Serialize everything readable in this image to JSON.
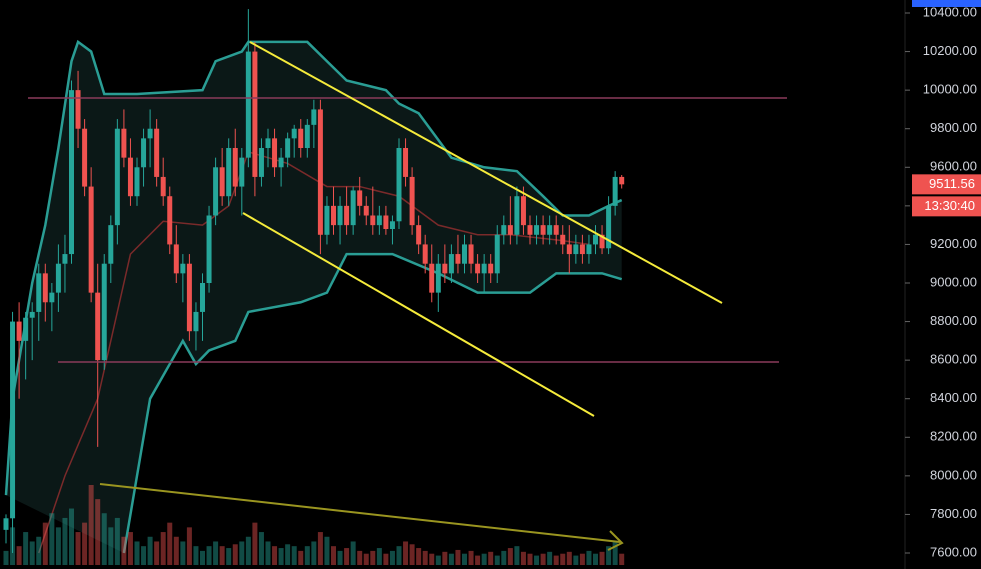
{
  "chart_data": {
    "type": "candlestick",
    "open": [
      7720,
      7780,
      8800,
      8700,
      8820,
      8850,
      9050,
      8900,
      8950,
      9100,
      9150,
      10000,
      9800,
      9500,
      8950,
      8600,
      9100,
      9300,
      9800,
      9650,
      9450,
      9600,
      9750,
      9800,
      9550,
      9450,
      9200,
      9050,
      9100,
      8750,
      8850,
      9000,
      9350,
      9600,
      9450,
      9700,
      9500,
      9650,
      10200,
      9550,
      9700,
      9750,
      9600,
      9650,
      9750,
      9800,
      9700,
      9820,
      9900,
      9250,
      9400,
      9300,
      9400,
      9300,
      9480,
      9400,
      9350,
      9300,
      9350,
      9280,
      9320,
      9700,
      9550,
      9300,
      9200,
      9100,
      8950,
      9100,
      9050,
      9150,
      9100,
      9200,
      9100,
      9050,
      9100,
      9050,
      9250,
      9300,
      9250,
      9450,
      9300,
      9250,
      9300,
      9250,
      9300,
      9250,
      9200,
      9150,
      9200,
      9150,
      9200,
      9250,
      9180,
      9400,
      9550
    ],
    "high": [
      7800,
      8850,
      8900,
      8850,
      8900,
      9100,
      9100,
      9000,
      9200,
      9250,
      10050,
      10100,
      9850,
      9600,
      9100,
      9150,
      9350,
      9850,
      9900,
      9750,
      9650,
      9800,
      9900,
      9850,
      9650,
      9500,
      9300,
      9150,
      9150,
      8900,
      9050,
      9400,
      9650,
      9700,
      9750,
      9800,
      9700,
      10420,
      10250,
      9750,
      9800,
      9800,
      9700,
      9780,
      9820,
      9850,
      9850,
      9950,
      9950,
      9450,
      9500,
      9450,
      9500,
      9500,
      9550,
      9450,
      9500,
      9400,
      9400,
      9350,
      9750,
      9750,
      9600,
      9350,
      9250,
      9200,
      9150,
      9200,
      9200,
      9250,
      9250,
      9250,
      9150,
      9150,
      9150,
      9300,
      9350,
      9450,
      9500,
      9500,
      9350,
      9350,
      9350,
      9350,
      9350,
      9300,
      9300,
      9250,
      9250,
      9250,
      9300,
      9300,
      9450,
      9580,
      9560
    ],
    "low": [
      7650,
      7600,
      8400,
      8500,
      8600,
      8700,
      8800,
      8750,
      8850,
      8950,
      9100,
      9700,
      9450,
      8900,
      8150,
      8550,
      9000,
      9200,
      9600,
      9400,
      9400,
      9500,
      9600,
      9500,
      9400,
      9150,
      9000,
      8900,
      8700,
      8650,
      8700,
      8950,
      9300,
      9400,
      9400,
      9450,
      9350,
      9600,
      9450,
      9500,
      9600,
      9550,
      9500,
      9600,
      9650,
      9650,
      9650,
      9700,
      9150,
      9200,
      9250,
      9200,
      9250,
      9250,
      9350,
      9300,
      9250,
      9250,
      9250,
      9200,
      9280,
      9500,
      9250,
      9150,
      9050,
      8900,
      8850,
      9000,
      9000,
      9050,
      9050,
      9050,
      9000,
      8950,
      9000,
      9000,
      9200,
      9200,
      9200,
      9250,
      9200,
      9200,
      9200,
      9200,
      9200,
      9150,
      9050,
      9100,
      9100,
      9100,
      9150,
      9150,
      9150,
      9350,
      9490
    ],
    "close": [
      7780,
      8800,
      8700,
      8820,
      8850,
      9050,
      8900,
      8950,
      9100,
      9150,
      10000,
      9800,
      9500,
      8950,
      8600,
      9100,
      9300,
      9800,
      9650,
      9450,
      9600,
      9750,
      9800,
      9550,
      9450,
      9200,
      9050,
      9100,
      8750,
      8850,
      9000,
      9350,
      9600,
      9450,
      9700,
      9500,
      9650,
      10200,
      9550,
      9700,
      9750,
      9600,
      9650,
      9750,
      9800,
      9700,
      9820,
      9900,
      9250,
      9400,
      9300,
      9400,
      9300,
      9480,
      9400,
      9350,
      9300,
      9350,
      9280,
      9320,
      9700,
      9550,
      9300,
      9200,
      9100,
      8950,
      9100,
      9050,
      9150,
      9100,
      9200,
      9100,
      9050,
      9100,
      9050,
      9250,
      9300,
      9250,
      9450,
      9300,
      9250,
      9300,
      9250,
      9300,
      9250,
      9200,
      9150,
      9200,
      9150,
      9200,
      9250,
      9180,
      9400,
      9550,
      9511.56
    ],
    "volume": [
      15,
      40,
      20,
      35,
      25,
      30,
      45,
      55,
      40,
      50,
      60,
      35,
      45,
      85,
      70,
      55,
      40,
      50,
      30,
      35,
      25,
      20,
      30,
      25,
      35,
      45,
      30,
      25,
      40,
      20,
      15,
      20,
      25,
      20,
      18,
      22,
      25,
      30,
      45,
      35,
      25,
      20,
      18,
      22,
      20,
      15,
      20,
      25,
      35,
      30,
      20,
      15,
      18,
      25,
      15,
      12,
      15,
      18,
      12,
      15,
      20,
      25,
      22,
      18,
      15,
      12,
      10,
      14,
      12,
      16,
      12,
      15,
      10,
      12,
      14,
      10,
      15,
      18,
      20,
      14,
      12,
      10,
      12,
      14,
      10,
      12,
      14,
      10,
      12,
      15,
      12,
      14,
      20,
      25,
      12
    ],
    "up_color": "#26a69a",
    "down_color": "#ef5350",
    "indicators": [
      {
        "color": "#2a9d94",
        "x": [
          0,
          1,
          4,
          6,
          8,
          10,
          11,
          13,
          15,
          20,
          30,
          32,
          36,
          37,
          40,
          46,
          49,
          52,
          58,
          60,
          63,
          68,
          73,
          78,
          82,
          85,
          89,
          92,
          94
        ],
        "values": [
          7900,
          8400,
          9000,
          9300,
          9700,
          10150,
          10250,
          10200,
          9980,
          9980,
          10000,
          10150,
          10200,
          10250,
          10250,
          10250,
          10150,
          10050,
          10000,
          9930,
          9880,
          9650,
          9600,
          9580,
          9450,
          9350,
          9350,
          9400,
          9430
        ]
      },
      {
        "color": "#2a9d94",
        "x": [
          18,
          22,
          27,
          29,
          31,
          35,
          37,
          45,
          49,
          52,
          59,
          66,
          72,
          80,
          84,
          91,
          94
        ],
        "values": [
          7600,
          8400,
          8700,
          8580,
          8650,
          8700,
          8850,
          8900,
          8950,
          9150,
          9150,
          9050,
          8950,
          8950,
          9050,
          9050,
          9020
        ]
      },
      {
        "color": "#7a2a2a",
        "x": [
          5,
          9,
          14,
          19,
          24,
          30,
          34,
          37,
          43,
          49,
          54,
          60,
          66,
          72,
          77,
          85,
          89
        ],
        "values": [
          7600,
          8000,
          8400,
          9150,
          9320,
          9300,
          9400,
          9680,
          9620,
          9500,
          9500,
          9450,
          9300,
          9250,
          9250,
          9220,
          9200
        ]
      }
    ],
    "ylim": [
      7600,
      10400
    ],
    "yticks": [
      {
        "value": 7600,
        "label": "7600.00"
      },
      {
        "value": 7800,
        "label": "7800.00"
      },
      {
        "value": 8000,
        "label": "8000.00"
      },
      {
        "value": 8200,
        "label": "8200.00"
      },
      {
        "value": 8400,
        "label": "8400.00"
      },
      {
        "value": 8600,
        "label": "8600.00"
      },
      {
        "value": 8800,
        "label": "8800.00"
      },
      {
        "value": 9000,
        "label": "9000.00"
      },
      {
        "value": 9200,
        "label": "9200.00"
      },
      {
        "value": 9400,
        "label": "9400.00"
      },
      {
        "value": 9600,
        "label": "9600.00"
      },
      {
        "value": 9800,
        "label": "9800.00"
      },
      {
        "value": 10000,
        "label": "10000.00"
      },
      {
        "value": 10200,
        "label": "10200.00"
      },
      {
        "value": 10400,
        "label": "10400.00"
      }
    ],
    "last_price": 9511.56,
    "countdown": "13:30:40"
  }
}
